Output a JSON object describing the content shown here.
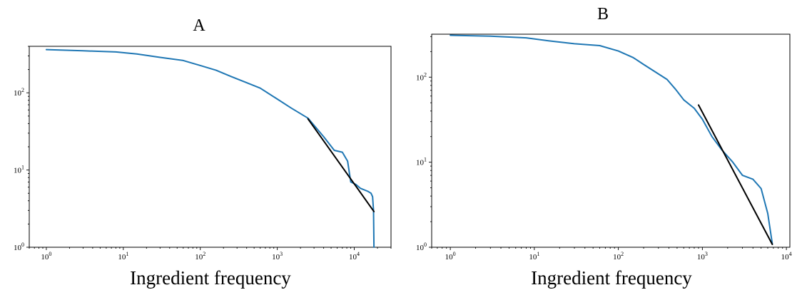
{
  "chart_data": [
    {
      "type": "line",
      "title": "A",
      "xlabel": "Ingredient frequency",
      "ylabel": "",
      "xscale": "log",
      "yscale": "log",
      "xlim": [
        0.6,
        30000
      ],
      "ylim": [
        1,
        400
      ],
      "x_tick_labels": [
        {
          "base": "10",
          "exp": "0"
        },
        {
          "base": "10",
          "exp": "1"
        },
        {
          "base": "10",
          "exp": "2"
        },
        {
          "base": "10",
          "exp": "3"
        },
        {
          "base": "10",
          "exp": "4"
        }
      ],
      "y_tick_labels": [
        {
          "base": "10",
          "exp": "0"
        },
        {
          "base": "10",
          "exp": "1"
        },
        {
          "base": "10",
          "exp": "2"
        }
      ],
      "grid": false,
      "series": [
        {
          "role": "data",
          "color": "#1f77b4",
          "x": [
            1,
            3,
            8,
            15,
            30,
            60,
            100,
            160,
            250,
            400,
            600,
            1000,
            1500,
            2500,
            4000,
            5500,
            7000,
            8200,
            9000,
            10500,
            12000,
            15000,
            16500,
            17300,
            17800,
            18000
          ],
          "y": [
            363,
            350,
            338,
            318,
            288,
            262,
            226,
            196,
            163,
            135,
            115,
            83,
            64,
            47,
            27,
            18,
            17,
            13,
            7,
            6.5,
            5.8,
            5.3,
            5.0,
            4.5,
            3.0,
            1.0
          ]
        },
        {
          "role": "fit",
          "color": "#000000",
          "x": [
            2500,
            18000
          ],
          "y": [
            46,
            2.9
          ]
        }
      ]
    },
    {
      "type": "line",
      "title": "B",
      "xlabel": "Ingredient frequency",
      "ylabel": "",
      "xscale": "log",
      "yscale": "log",
      "xlim": [
        0.6,
        11000
      ],
      "ylim": [
        1,
        320
      ],
      "x_tick_labels": [
        {
          "base": "10",
          "exp": "0"
        },
        {
          "base": "10",
          "exp": "1"
        },
        {
          "base": "10",
          "exp": "2"
        },
        {
          "base": "10",
          "exp": "3"
        },
        {
          "base": "10",
          "exp": "4"
        }
      ],
      "y_tick_labels": [
        {
          "base": "10",
          "exp": "0"
        },
        {
          "base": "10",
          "exp": "1"
        },
        {
          "base": "10",
          "exp": "2"
        }
      ],
      "grid": false,
      "series": [
        {
          "role": "data",
          "color": "#1f77b4",
          "x": [
            1,
            3,
            8,
            15,
            30,
            60,
            100,
            150,
            200,
            280,
            380,
            480,
            600,
            800,
            1000,
            1300,
            1700,
            2300,
            3000,
            4000,
            5000,
            6000,
            6800
          ],
          "y": [
            311,
            303,
            290,
            267,
            247,
            235,
            203,
            170,
            141,
            114,
            94,
            72,
            54,
            43,
            32,
            20,
            14,
            10,
            7,
            6.3,
            4.9,
            2.5,
            1.1
          ]
        },
        {
          "role": "fit",
          "color": "#000000",
          "x": [
            900,
            6800
          ],
          "y": [
            47,
            1.08
          ]
        }
      ]
    }
  ]
}
